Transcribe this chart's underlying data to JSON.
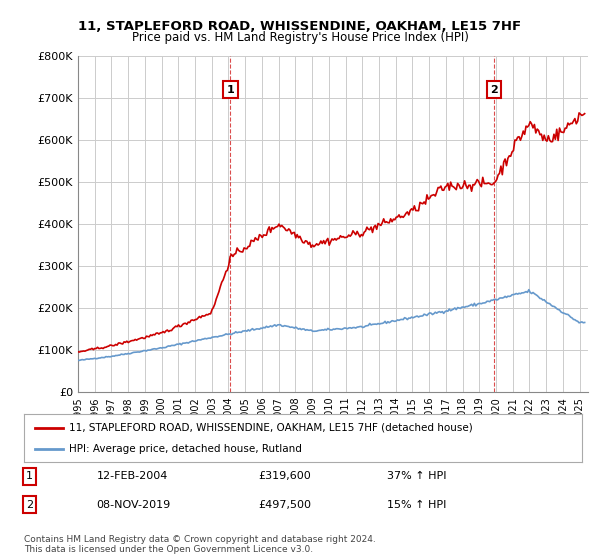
{
  "title": "11, STAPLEFORD ROAD, WHISSENDINE, OAKHAM, LE15 7HF",
  "subtitle": "Price paid vs. HM Land Registry's House Price Index (HPI)",
  "red_label": "11, STAPLEFORD ROAD, WHISSENDINE, OAKHAM, LE15 7HF (detached house)",
  "blue_label": "HPI: Average price, detached house, Rutland",
  "footnote": "Contains HM Land Registry data © Crown copyright and database right 2024.\nThis data is licensed under the Open Government Licence v3.0.",
  "marker1_date": "12-FEB-2004",
  "marker1_price": "£319,600",
  "marker1_hpi": "37% ↑ HPI",
  "marker2_date": "08-NOV-2019",
  "marker2_price": "£497,500",
  "marker2_hpi": "15% ↑ HPI",
  "ylim": [
    0,
    800000
  ],
  "xlim_start": 1995.0,
  "xlim_end": 2025.5,
  "red_color": "#cc0000",
  "blue_color": "#6699cc",
  "grid_color": "#cccccc",
  "background_color": "#ffffff",
  "marker1_x": 2004.12,
  "marker1_y": 319600,
  "marker2_x": 2019.87,
  "marker2_y": 497500
}
